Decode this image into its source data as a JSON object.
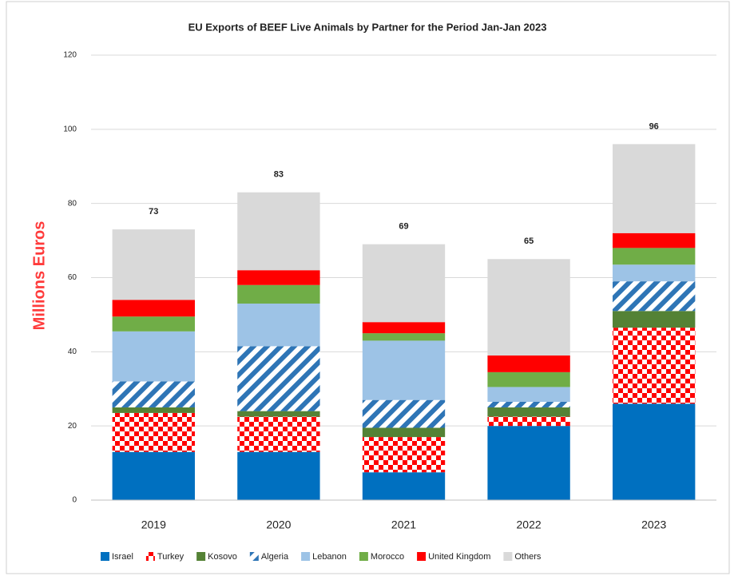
{
  "chart_data": {
    "type": "stacked_bar",
    "title": "EU Exports of BEEF Live Animals by Partner for the Period Jan-Jan 2023",
    "y_label": "Millions Euros",
    "categories": [
      "2019",
      "2020",
      "2021",
      "2022",
      "2023"
    ],
    "series": [
      {
        "name": "Israel",
        "color": "#0070c0",
        "pattern": "solid",
        "values": [
          13,
          13,
          7.5,
          20,
          26
        ]
      },
      {
        "name": "Turkey",
        "color": "#ff0000",
        "pattern": "checker",
        "values": [
          10.5,
          9.5,
          9.5,
          2.5,
          20.5
        ]
      },
      {
        "name": "Kosovo",
        "color": "#548235",
        "pattern": "solid",
        "values": [
          1.5,
          1.5,
          2.5,
          2.5,
          4.5
        ]
      },
      {
        "name": "Algeria",
        "color": "#2e75b6",
        "pattern": "stripes",
        "values": [
          7,
          17.5,
          7.5,
          1.5,
          8
        ]
      },
      {
        "name": "Lebanon",
        "color": "#9dc3e6",
        "pattern": "solid",
        "values": [
          13.5,
          11.5,
          16,
          4,
          4.5
        ]
      },
      {
        "name": "Morocco",
        "color": "#70ad47",
        "pattern": "solid",
        "values": [
          4,
          5,
          2,
          4,
          4.5
        ]
      },
      {
        "name": "United Kingdom",
        "color": "#ff0000",
        "pattern": "solid",
        "values": [
          4.5,
          4,
          3,
          4.5,
          4
        ]
      },
      {
        "name": "Others",
        "color": "#d9d9d9",
        "pattern": "solid",
        "values": [
          19,
          21,
          21,
          26,
          24
        ]
      }
    ],
    "total_labels": [
      73,
      83,
      69,
      65,
      96
    ],
    "ylim": [
      0,
      120
    ],
    "yticks": [
      0,
      20,
      40,
      60,
      80,
      100,
      120
    ],
    "grid": true,
    "legend": "bottom"
  }
}
